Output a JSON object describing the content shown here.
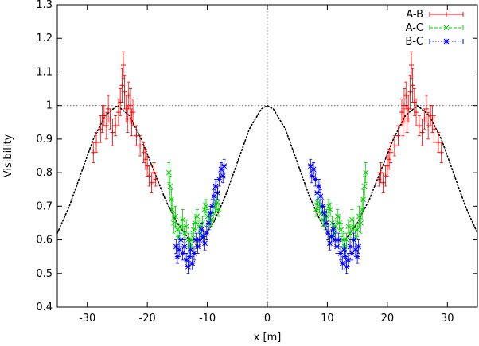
{
  "chart_data": {
    "type": "scatter",
    "xlabel": "x [m]",
    "ylabel": "Visibility",
    "xlim": [
      -35,
      35
    ],
    "ylim": [
      0.4,
      1.3
    ],
    "xticks": [
      -30,
      -20,
      -10,
      0,
      10,
      20,
      30
    ],
    "yticks": [
      0.4,
      0.5,
      0.6,
      0.7,
      0.8,
      0.9,
      1.0,
      1.1,
      1.2,
      1.3
    ],
    "ytick_labels": [
      "0.4",
      "0.5",
      "0.6",
      "0.7",
      "0.8",
      "0.9",
      "1",
      "1.1",
      "1.2",
      "1.3"
    ],
    "reference_lines": {
      "horizontal": 1.0,
      "vertical": 0
    },
    "grid": false,
    "legend_position": "top-right",
    "series": [
      {
        "name": "A-B",
        "color": "#ff0000",
        "marker": "plus",
        "points": [
          [
            -29.0,
            0.86,
            0.03
          ],
          [
            -28.5,
            0.89,
            0.03
          ],
          [
            -27.8,
            0.93,
            0.04
          ],
          [
            -27.5,
            0.96,
            0.04
          ],
          [
            -27.2,
            0.97,
            0.03
          ],
          [
            -26.8,
            0.94,
            0.04
          ],
          [
            -26.5,
            0.99,
            0.04
          ],
          [
            -26.2,
            0.96,
            0.03
          ],
          [
            -25.8,
            0.92,
            0.04
          ],
          [
            -25.3,
            0.94,
            0.03
          ],
          [
            -24.8,
            0.98,
            0.04
          ],
          [
            -24.5,
            1.01,
            0.04
          ],
          [
            -24.2,
            1.06,
            0.05
          ],
          [
            -24.0,
            1.12,
            0.04
          ],
          [
            -23.8,
            1.04,
            0.05
          ],
          [
            -23.5,
            0.99,
            0.04
          ],
          [
            -23.3,
            0.96,
            0.04
          ],
          [
            -23.1,
            1.03,
            0.04
          ],
          [
            -22.8,
            1.0,
            0.05
          ],
          [
            -22.6,
            0.95,
            0.04
          ],
          [
            -22.4,
            0.98,
            0.04
          ],
          [
            -21.8,
            0.91,
            0.03
          ],
          [
            -21.2,
            0.88,
            0.03
          ],
          [
            -20.6,
            0.86,
            0.03
          ],
          [
            -20.3,
            0.84,
            0.03
          ],
          [
            -20.0,
            0.82,
            0.03
          ],
          [
            -19.7,
            0.79,
            0.03
          ],
          [
            -19.3,
            0.77,
            0.03
          ],
          [
            -18.9,
            0.8,
            0.03
          ],
          [
            -18.6,
            0.78,
            0.02
          ],
          [
            29.0,
            0.86,
            0.03
          ],
          [
            28.5,
            0.89,
            0.03
          ],
          [
            27.8,
            0.93,
            0.04
          ],
          [
            27.5,
            0.96,
            0.04
          ],
          [
            27.2,
            0.97,
            0.03
          ],
          [
            26.8,
            0.94,
            0.04
          ],
          [
            26.5,
            0.99,
            0.04
          ],
          [
            26.2,
            0.96,
            0.03
          ],
          [
            25.8,
            0.92,
            0.04
          ],
          [
            25.3,
            0.94,
            0.03
          ],
          [
            24.8,
            0.98,
            0.04
          ],
          [
            24.5,
            1.01,
            0.04
          ],
          [
            24.2,
            1.06,
            0.05
          ],
          [
            24.0,
            1.12,
            0.04
          ],
          [
            23.8,
            1.04,
            0.05
          ],
          [
            23.5,
            0.99,
            0.04
          ],
          [
            23.3,
            0.96,
            0.04
          ],
          [
            23.1,
            1.03,
            0.04
          ],
          [
            22.8,
            1.0,
            0.05
          ],
          [
            22.6,
            0.95,
            0.04
          ],
          [
            22.4,
            0.98,
            0.04
          ],
          [
            21.8,
            0.91,
            0.03
          ],
          [
            21.2,
            0.88,
            0.03
          ],
          [
            20.6,
            0.86,
            0.03
          ],
          [
            20.3,
            0.84,
            0.03
          ],
          [
            20.0,
            0.82,
            0.03
          ],
          [
            19.7,
            0.79,
            0.03
          ],
          [
            19.3,
            0.77,
            0.03
          ],
          [
            18.9,
            0.8,
            0.03
          ],
          [
            18.6,
            0.78,
            0.02
          ]
        ]
      },
      {
        "name": "A-C",
        "color": "#00cc00",
        "marker": "cross",
        "points": [
          [
            -16.4,
            0.8,
            0.03
          ],
          [
            -16.2,
            0.76,
            0.03
          ],
          [
            -16.0,
            0.72,
            0.03
          ],
          [
            -15.8,
            0.69,
            0.03
          ],
          [
            -15.6,
            0.65,
            0.03
          ],
          [
            -15.3,
            0.67,
            0.03
          ],
          [
            -15.0,
            0.63,
            0.02
          ],
          [
            -14.7,
            0.61,
            0.02
          ],
          [
            -14.4,
            0.64,
            0.02
          ],
          [
            -14.1,
            0.66,
            0.03
          ],
          [
            -13.8,
            0.62,
            0.02
          ],
          [
            -13.5,
            0.64,
            0.02
          ],
          [
            -13.2,
            0.6,
            0.02
          ],
          [
            -12.9,
            0.58,
            0.02
          ],
          [
            -12.6,
            0.6,
            0.02
          ],
          [
            -12.3,
            0.63,
            0.02
          ],
          [
            -12.0,
            0.65,
            0.02
          ],
          [
            -11.7,
            0.67,
            0.02
          ],
          [
            -11.4,
            0.64,
            0.02
          ],
          [
            -11.1,
            0.62,
            0.02
          ],
          [
            -10.8,
            0.65,
            0.02
          ],
          [
            -10.5,
            0.69,
            0.02
          ],
          [
            -10.2,
            0.7,
            0.02
          ],
          [
            -9.9,
            0.67,
            0.02
          ],
          [
            -9.6,
            0.65,
            0.02
          ],
          [
            -9.3,
            0.66,
            0.02
          ],
          [
            -9.0,
            0.68,
            0.02
          ],
          [
            -8.7,
            0.7,
            0.02
          ],
          [
            -8.4,
            0.71,
            0.02
          ],
          [
            -8.1,
            0.69,
            0.02
          ],
          [
            16.4,
            0.8,
            0.03
          ],
          [
            16.2,
            0.76,
            0.03
          ],
          [
            16.0,
            0.72,
            0.03
          ],
          [
            15.8,
            0.69,
            0.03
          ],
          [
            15.6,
            0.65,
            0.03
          ],
          [
            15.3,
            0.67,
            0.03
          ],
          [
            15.0,
            0.63,
            0.02
          ],
          [
            14.7,
            0.61,
            0.02
          ],
          [
            14.4,
            0.64,
            0.02
          ],
          [
            14.1,
            0.66,
            0.03
          ],
          [
            13.8,
            0.62,
            0.02
          ],
          [
            13.5,
            0.64,
            0.02
          ],
          [
            13.2,
            0.6,
            0.02
          ],
          [
            12.9,
            0.58,
            0.02
          ],
          [
            12.6,
            0.6,
            0.02
          ],
          [
            12.3,
            0.63,
            0.02
          ],
          [
            12.0,
            0.65,
            0.02
          ],
          [
            11.7,
            0.67,
            0.02
          ],
          [
            11.4,
            0.64,
            0.02
          ],
          [
            11.1,
            0.62,
            0.02
          ],
          [
            10.8,
            0.65,
            0.02
          ],
          [
            10.5,
            0.69,
            0.02
          ],
          [
            10.2,
            0.7,
            0.02
          ],
          [
            9.9,
            0.67,
            0.02
          ],
          [
            9.6,
            0.65,
            0.02
          ],
          [
            9.3,
            0.66,
            0.02
          ],
          [
            9.0,
            0.68,
            0.02
          ],
          [
            8.7,
            0.7,
            0.02
          ],
          [
            8.4,
            0.71,
            0.02
          ],
          [
            8.1,
            0.69,
            0.02
          ]
        ]
      },
      {
        "name": "B-C",
        "color": "#0000ff",
        "marker": "star",
        "points": [
          [
            -15.2,
            0.58,
            0.02
          ],
          [
            -15.0,
            0.55,
            0.02
          ],
          [
            -14.7,
            0.57,
            0.02
          ],
          [
            -14.4,
            0.6,
            0.02
          ],
          [
            -14.1,
            0.56,
            0.02
          ],
          [
            -13.8,
            0.58,
            0.02
          ],
          [
            -13.5,
            0.54,
            0.02
          ],
          [
            -13.2,
            0.52,
            0.02
          ],
          [
            -13.0,
            0.55,
            0.02
          ],
          [
            -12.8,
            0.57,
            0.02
          ],
          [
            -12.5,
            0.53,
            0.02
          ],
          [
            -12.2,
            0.56,
            0.02
          ],
          [
            -11.9,
            0.6,
            0.02
          ],
          [
            -11.6,
            0.58,
            0.02
          ],
          [
            -11.3,
            0.6,
            0.02
          ],
          [
            -11.0,
            0.63,
            0.02
          ],
          [
            -10.7,
            0.61,
            0.02
          ],
          [
            -10.4,
            0.59,
            0.02
          ],
          [
            -10.1,
            0.62,
            0.02
          ],
          [
            -9.8,
            0.65,
            0.02
          ],
          [
            -9.5,
            0.68,
            0.02
          ],
          [
            -9.2,
            0.7,
            0.02
          ],
          [
            -8.9,
            0.73,
            0.02
          ],
          [
            -8.6,
            0.76,
            0.02
          ],
          [
            -8.3,
            0.74,
            0.02
          ],
          [
            -8.0,
            0.78,
            0.02
          ],
          [
            -7.7,
            0.81,
            0.02
          ],
          [
            -7.4,
            0.79,
            0.02
          ],
          [
            -7.2,
            0.82,
            0.02
          ],
          [
            15.2,
            0.58,
            0.02
          ],
          [
            15.0,
            0.55,
            0.02
          ],
          [
            14.7,
            0.57,
            0.02
          ],
          [
            14.4,
            0.6,
            0.02
          ],
          [
            14.1,
            0.56,
            0.02
          ],
          [
            13.8,
            0.58,
            0.02
          ],
          [
            13.5,
            0.54,
            0.02
          ],
          [
            13.2,
            0.52,
            0.02
          ],
          [
            13.0,
            0.55,
            0.02
          ],
          [
            12.8,
            0.57,
            0.02
          ],
          [
            12.5,
            0.53,
            0.02
          ],
          [
            12.2,
            0.56,
            0.02
          ],
          [
            11.9,
            0.6,
            0.02
          ],
          [
            11.6,
            0.58,
            0.02
          ],
          [
            11.3,
            0.6,
            0.02
          ],
          [
            11.0,
            0.63,
            0.02
          ],
          [
            10.7,
            0.61,
            0.02
          ],
          [
            10.4,
            0.59,
            0.02
          ],
          [
            10.1,
            0.62,
            0.02
          ],
          [
            9.8,
            0.65,
            0.02
          ],
          [
            9.5,
            0.68,
            0.02
          ],
          [
            9.2,
            0.7,
            0.02
          ],
          [
            8.9,
            0.73,
            0.02
          ],
          [
            8.6,
            0.76,
            0.02
          ],
          [
            8.3,
            0.74,
            0.02
          ],
          [
            8.0,
            0.78,
            0.02
          ],
          [
            7.7,
            0.81,
            0.02
          ],
          [
            7.4,
            0.79,
            0.02
          ],
          [
            7.2,
            0.82,
            0.02
          ]
        ]
      }
    ],
    "model_curve": {
      "color": "#000000",
      "style": "dotted",
      "points": [
        [
          -35,
          0.62
        ],
        [
          -33,
          0.7
        ],
        [
          -31,
          0.8
        ],
        [
          -29,
          0.9
        ],
        [
          -27,
          0.97
        ],
        [
          -25,
          1.0
        ],
        [
          -23,
          0.97
        ],
        [
          -21,
          0.9
        ],
        [
          -19,
          0.81
        ],
        [
          -17,
          0.72
        ],
        [
          -15,
          0.65
        ],
        [
          -13,
          0.6
        ],
        [
          -11,
          0.6
        ],
        [
          -9,
          0.65
        ],
        [
          -7,
          0.73
        ],
        [
          -5,
          0.83
        ],
        [
          -3,
          0.93
        ],
        [
          -1,
          0.99
        ],
        [
          0,
          1.0
        ],
        [
          1,
          0.99
        ],
        [
          3,
          0.93
        ],
        [
          5,
          0.83
        ],
        [
          7,
          0.73
        ],
        [
          9,
          0.65
        ],
        [
          11,
          0.6
        ],
        [
          13,
          0.6
        ],
        [
          15,
          0.65
        ],
        [
          17,
          0.72
        ],
        [
          19,
          0.81
        ],
        [
          21,
          0.9
        ],
        [
          23,
          0.97
        ],
        [
          25,
          1.0
        ],
        [
          27,
          0.97
        ],
        [
          29,
          0.9
        ],
        [
          31,
          0.8
        ],
        [
          33,
          0.7
        ],
        [
          35,
          0.62
        ]
      ]
    }
  }
}
